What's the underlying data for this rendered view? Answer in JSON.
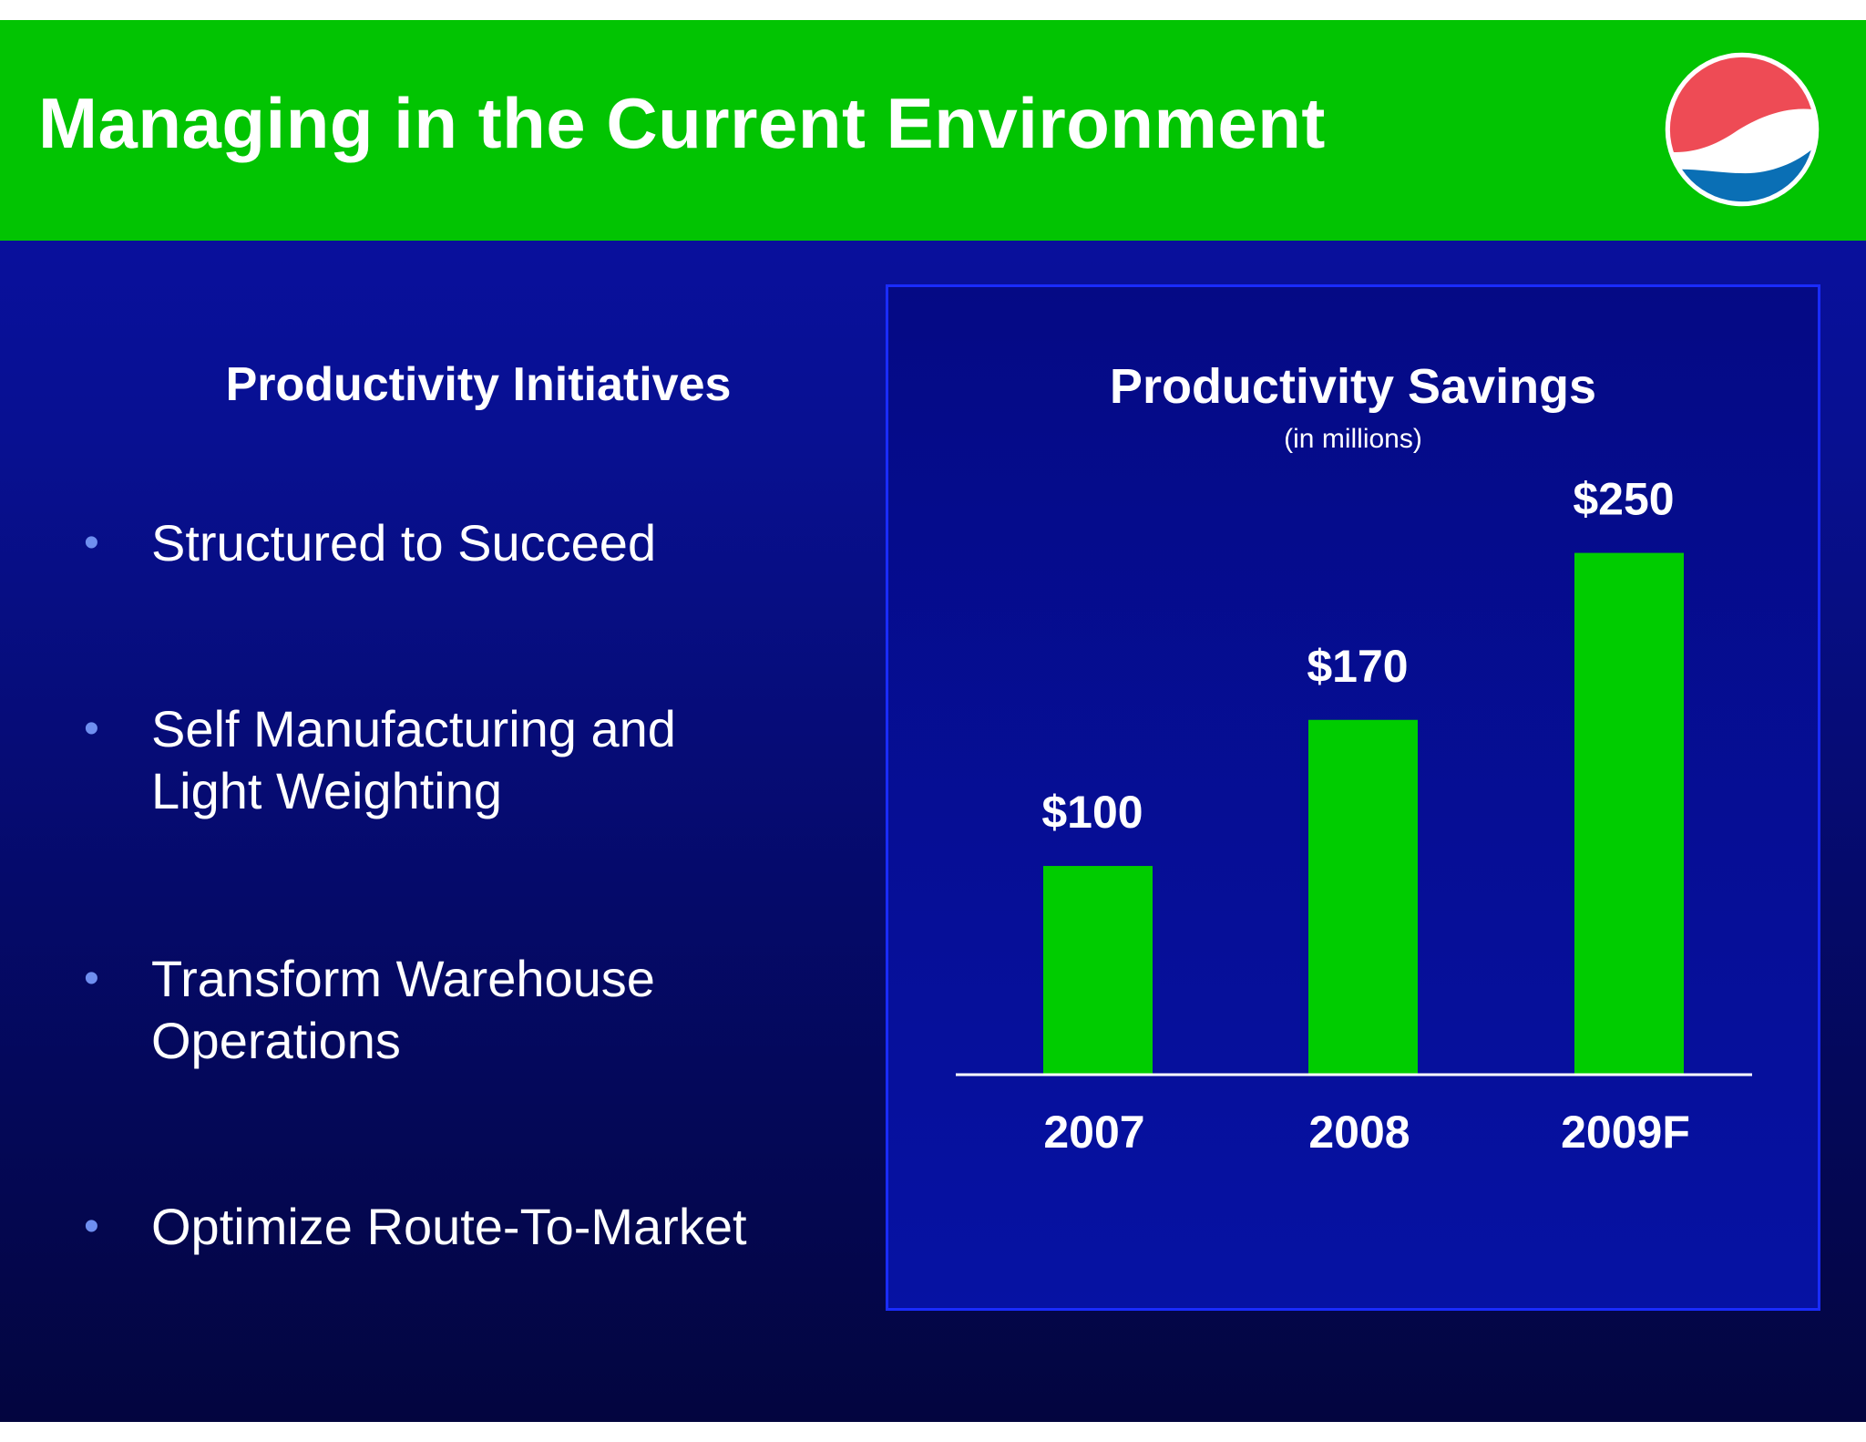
{
  "header": {
    "title": "Managing in the Current Environment",
    "logo_icon": "pepsi-globe-logo-icon"
  },
  "left": {
    "heading": "Productivity Initiatives",
    "bullet_glyph": "•",
    "bullets": [
      {
        "line1": "Structured to Succeed",
        "line2": ""
      },
      {
        "line1": "Self Manufacturing and",
        "line2": "Light Weighting"
      },
      {
        "line1": "Transform Warehouse",
        "line2": "Operations"
      },
      {
        "line1": "Optimize Route-To-Market",
        "line2": ""
      }
    ]
  },
  "colors": {
    "title_bar": "#02c402",
    "bar": "#00cc00",
    "text": "#ffffff",
    "bullet": "#6f8ff0"
  },
  "chart_data": {
    "type": "bar",
    "title": "Productivity Savings",
    "subtitle": "(in millions)",
    "categories": [
      "2007",
      "2008",
      "2009F"
    ],
    "values": [
      100,
      170,
      250
    ],
    "value_labels": [
      "$100",
      "$170",
      "$250"
    ],
    "ylim": [
      0,
      290
    ],
    "grid": false,
    "legend": "none",
    "xlabel": "",
    "ylabel": ""
  }
}
